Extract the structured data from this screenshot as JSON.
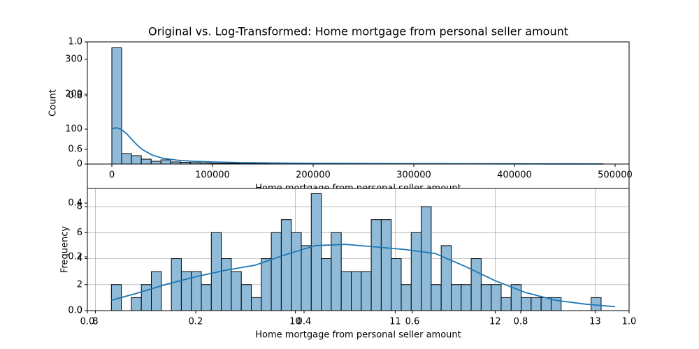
{
  "chart_data": [
    {
      "type": "frame",
      "xlim": [
        0,
        1
      ],
      "ylim": [
        0,
        1
      ],
      "xticks": [
        {
          "value": 0,
          "label": "0.0"
        },
        0.2,
        0.4,
        0.6,
        0.8,
        {
          "value": 1,
          "label": "1.0"
        }
      ],
      "yticks": [
        {
          "value": 0,
          "label": "0.0"
        },
        0.2,
        0.4,
        0.6,
        0.8,
        {
          "value": 1,
          "label": "1.0"
        }
      ]
    },
    {
      "type": "histogram",
      "title": "Original vs. Log-Transformed: Home mortgage from personal seller amount",
      "xlabel": "Home mortgage from personal seller amount",
      "ylabel": "Count",
      "xlim": [
        -24300,
        513900
      ],
      "ylim": [
        0,
        350
      ],
      "xticks": [
        0,
        100000,
        200000,
        300000,
        400000,
        500000
      ],
      "yticks": [
        0,
        100,
        200,
        300
      ],
      "grid": false,
      "color": "#8fbbd9",
      "line_color": "#1f77b4",
      "bins": [
        0,
        9760,
        19520,
        29280,
        39040,
        48800,
        58560,
        68320,
        78080,
        87840,
        97600,
        107360,
        117120,
        126880,
        136640,
        146400,
        156160,
        165920,
        175680,
        185440,
        195200,
        204960,
        214720,
        224480,
        234240,
        244000,
        253760,
        263520,
        273280,
        283040,
        292800,
        302560,
        312320,
        322080,
        331840,
        341600,
        351360,
        361120,
        370880,
        380640,
        390400,
        400160,
        409920,
        419680,
        429440,
        439200,
        448960,
        458720,
        468480,
        478240,
        488000
      ],
      "counts": [
        333,
        30,
        24,
        14,
        8,
        12,
        6,
        5,
        4,
        3,
        2,
        2,
        2,
        1,
        1,
        1,
        1,
        1,
        1,
        1,
        1,
        1,
        1,
        1,
        1,
        1,
        1,
        0,
        0,
        1,
        0,
        0,
        1,
        0,
        0,
        0,
        0,
        0,
        0,
        0,
        0,
        0,
        1,
        0,
        0,
        0,
        0,
        0,
        0,
        1
      ],
      "kde": {
        "x": [
          0,
          5000,
          10000,
          15000,
          20000,
          25000,
          30000,
          40000,
          50000,
          65000,
          80000,
          100000,
          130000,
          160000,
          200000,
          250000,
          300000,
          350000,
          400000,
          450000,
          488000
        ],
        "y": [
          101,
          104,
          98,
          86,
          70,
          55,
          42,
          26,
          17,
          11,
          8,
          6,
          4,
          3,
          2,
          1.5,
          1,
          0.8,
          0.6,
          0.4,
          0.3
        ]
      }
    },
    {
      "type": "histogram",
      "xlabel": "Home mortgage from personal seller amount",
      "ylabel": "Frequency",
      "xlim": [
        7.92,
        13.34
      ],
      "ylim": [
        0,
        9.4
      ],
      "xticks": [
        8,
        10,
        11,
        12,
        13
      ],
      "yticks": [
        0,
        2,
        4,
        6,
        8
      ],
      "grid": true,
      "color": "#8fbbd9",
      "line_color": "#1f77b4",
      "bins": [
        8.16,
        8.26,
        8.36,
        8.46,
        8.56,
        8.66,
        8.76,
        8.86,
        8.96,
        9.06,
        9.16,
        9.26,
        9.36,
        9.46,
        9.56,
        9.66,
        9.76,
        9.86,
        9.96,
        10.06,
        10.16,
        10.26,
        10.36,
        10.46,
        10.56,
        10.66,
        10.76,
        10.86,
        10.96,
        11.06,
        11.16,
        11.26,
        11.36,
        11.46,
        11.56,
        11.66,
        11.76,
        11.86,
        11.96,
        12.06,
        12.16,
        12.26,
        12.36,
        12.46,
        12.56,
        12.66,
        12.76,
        12.86,
        12.96,
        13.06
      ],
      "counts": [
        2,
        0,
        1,
        2,
        3,
        0,
        4,
        3,
        3,
        2,
        6,
        4,
        3,
        2,
        1,
        4,
        6,
        7,
        6,
        5,
        9,
        4,
        6,
        3,
        3,
        3,
        7,
        7,
        4,
        2,
        6,
        8,
        2,
        5,
        2,
        2,
        4,
        2,
        2,
        1,
        2,
        1,
        1,
        1,
        1,
        0,
        0,
        0,
        1
      ],
      "kde": {
        "x": [
          8.16,
          8.4,
          8.7,
          9.0,
          9.3,
          9.6,
          9.9,
          10.2,
          10.5,
          10.8,
          11.1,
          11.4,
          11.7,
          12.0,
          12.3,
          12.6,
          12.9,
          13.2
        ],
        "y": [
          0.8,
          1.3,
          2.0,
          2.6,
          3.1,
          3.5,
          4.3,
          5.0,
          5.1,
          4.9,
          4.7,
          4.4,
          3.4,
          2.3,
          1.4,
          0.8,
          0.5,
          0.3
        ]
      }
    }
  ]
}
